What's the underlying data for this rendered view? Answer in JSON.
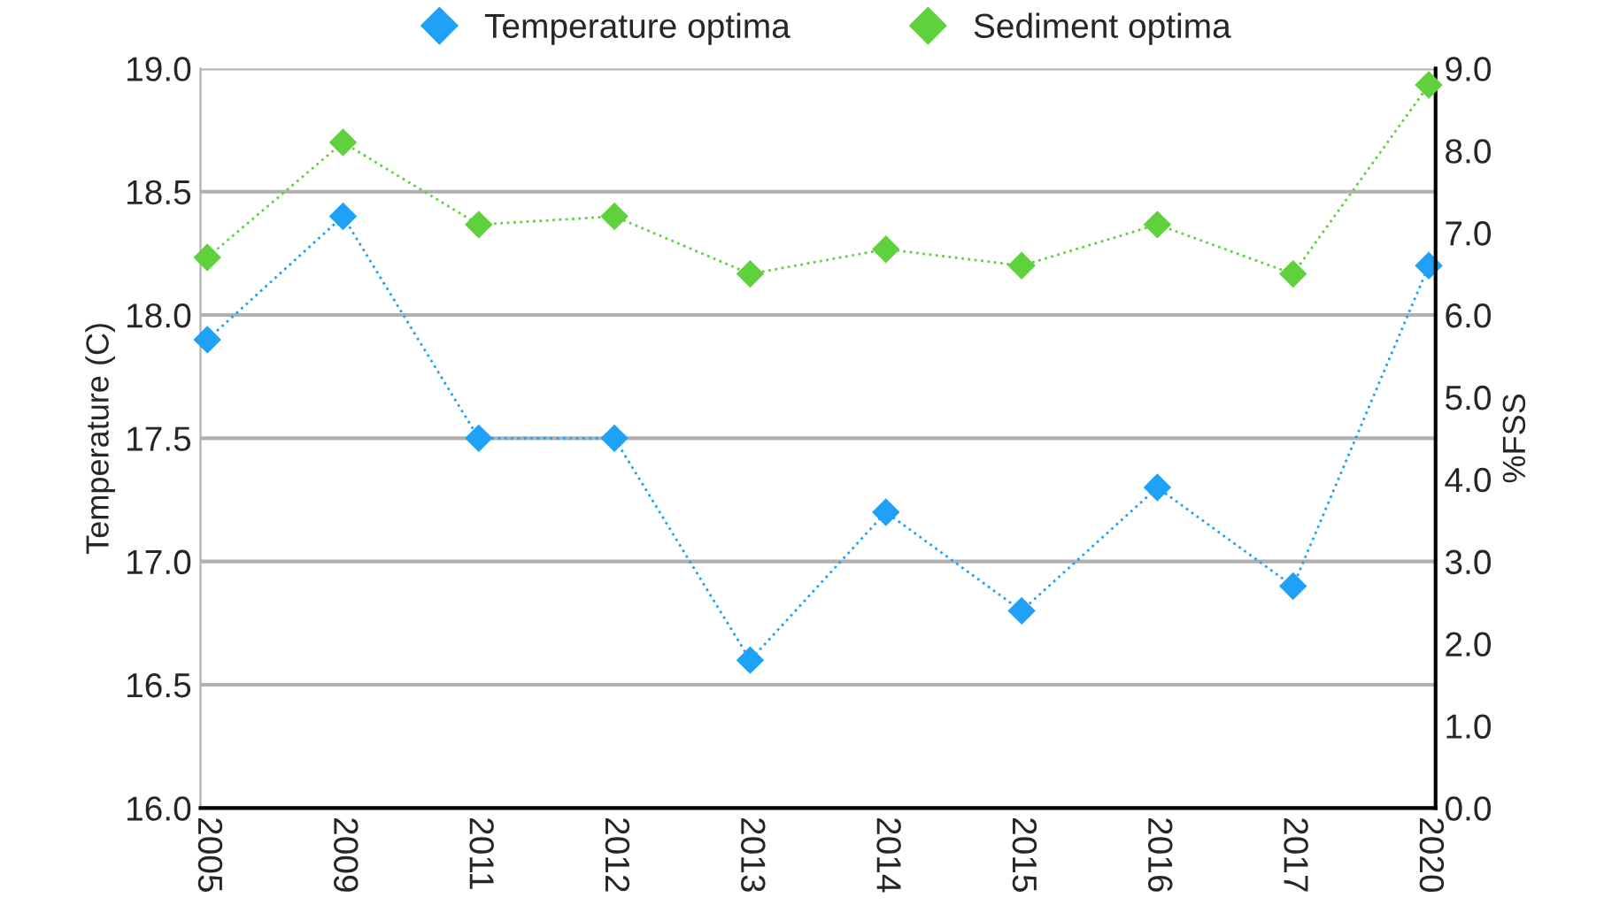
{
  "chart_data": {
    "type": "line",
    "categories": [
      "2005",
      "2009",
      "2011",
      "2012",
      "2013",
      "2014",
      "2015",
      "2016",
      "2017",
      "2020"
    ],
    "ylabel": "Temperature (C)",
    "y2label": "%FSS",
    "ylim": [
      16.0,
      19.0
    ],
    "yticks": [
      {
        "value": 16.0,
        "label": "16.0"
      },
      {
        "value": 16.5,
        "label": "16.5"
      },
      {
        "value": 17.0,
        "label": "17.0"
      },
      {
        "value": 17.5,
        "label": "17.5"
      },
      {
        "value": 18.0,
        "label": "18.0"
      },
      {
        "value": 18.5,
        "label": "18.5"
      },
      {
        "value": 19.0,
        "label": "19.0"
      }
    ],
    "y2lim": [
      0.0,
      9.0
    ],
    "y2ticks": [
      {
        "value": 0,
        "label": "0.0"
      },
      {
        "value": 1,
        "label": "1.0"
      },
      {
        "value": 2,
        "label": "2.0"
      },
      {
        "value": 3,
        "label": "3.0"
      },
      {
        "value": 4,
        "label": "4.0"
      },
      {
        "value": 5,
        "label": "5.0"
      },
      {
        "value": 6,
        "label": "6.0"
      },
      {
        "value": 7,
        "label": "7.0"
      },
      {
        "value": 8,
        "label": "8.0"
      },
      {
        "value": 9,
        "label": "9.0"
      }
    ],
    "series": [
      {
        "name": "Temperature optima",
        "color": "#1ea1f7",
        "values": [
          17.9,
          18.4,
          17.5,
          17.5,
          16.6,
          17.2,
          16.8,
          17.3,
          16.9,
          18.2
        ]
      },
      {
        "name": "Sediment optima",
        "color": "#5fd13c",
        "axis": "y2",
        "values": [
          6.7,
          8.1,
          7.1,
          7.2,
          6.5,
          6.8,
          6.6,
          7.1,
          6.5,
          8.8
        ]
      }
    ],
    "marker": "diamond",
    "line_style": "dotted",
    "grid": "y",
    "legend": "top"
  }
}
